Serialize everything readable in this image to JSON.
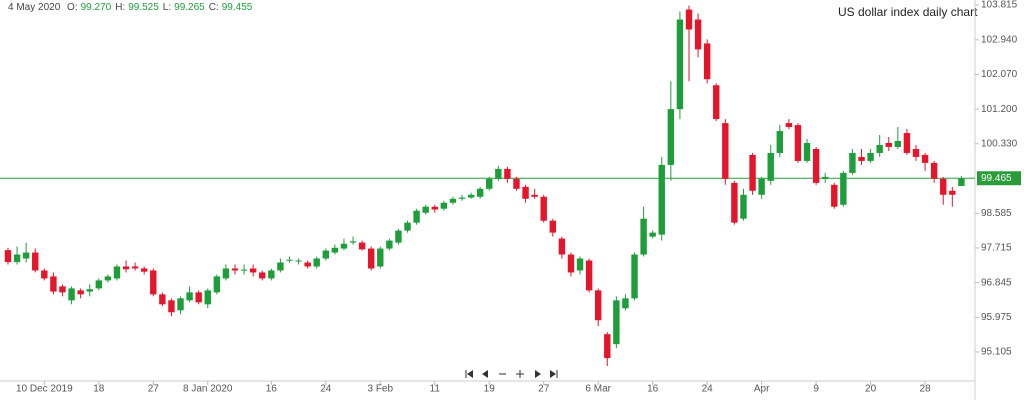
{
  "chart_data": {
    "type": "candlestick",
    "title": "US dollar index daily chart",
    "ohlc_header": {
      "date": "4 May 2020",
      "items": [
        {
          "label": "O:",
          "value": "99.270"
        },
        {
          "label": "H:",
          "value": "99.525"
        },
        {
          "label": "L:",
          "value": "99.265"
        },
        {
          "label": "C:",
          "value": "99.455"
        }
      ]
    },
    "categories": [
      null,
      null,
      null,
      null,
      "10 Dec 2019",
      null,
      null,
      null,
      null,
      null,
      "18",
      null,
      null,
      null,
      null,
      null,
      "27",
      null,
      null,
      null,
      null,
      null,
      "8 Jan 2020",
      null,
      null,
      null,
      null,
      null,
      null,
      "16",
      null,
      null,
      null,
      null,
      null,
      "24",
      null,
      null,
      null,
      null,
      null,
      "3 Feb",
      null,
      null,
      null,
      null,
      null,
      "11",
      null,
      null,
      null,
      null,
      null,
      "19",
      null,
      null,
      null,
      null,
      null,
      "27",
      null,
      null,
      null,
      null,
      null,
      "6 Mar",
      null,
      null,
      null,
      null,
      null,
      "16",
      null,
      null,
      null,
      null,
      null,
      "24",
      null,
      null,
      null,
      null,
      null,
      "Apr",
      null,
      null,
      null,
      null,
      null,
      "9",
      null,
      null,
      null,
      null,
      null,
      "20",
      null,
      null,
      null,
      null,
      null,
      "28",
      null,
      null,
      null,
      null
    ],
    "open": [
      97.66,
      97.36,
      97.45,
      97.6,
      97.15,
      97.0,
      96.75,
      96.4,
      96.65,
      96.62,
      96.7,
      96.9,
      96.95,
      97.25,
      97.25,
      97.2,
      97.15,
      96.55,
      96.4,
      96.15,
      96.4,
      96.6,
      96.3,
      96.6,
      96.95,
      97.2,
      97.15,
      97.2,
      97.1,
      96.95,
      97.15,
      97.4,
      97.38,
      97.35,
      97.25,
      97.45,
      97.6,
      97.7,
      97.85,
      97.85,
      97.7,
      97.25,
      97.7,
      97.85,
      98.15,
      98.35,
      98.6,
      98.75,
      98.7,
      98.85,
      98.95,
      98.98,
      99.0,
      99.2,
      99.45,
      99.7,
      99.45,
      99.25,
      99.05,
      99.0,
      98.4,
      97.95,
      97.55,
      97.15,
      97.4,
      96.65,
      95.55,
      95.3,
      96.2,
      96.45,
      97.55,
      98.0,
      98.05,
      99.8,
      101.2,
      103.7,
      103.45,
      102.85,
      101.8,
      100.85,
      99.35,
      98.45,
      100.05,
      99.05,
      99.4,
      100.1,
      100.85,
      100.8,
      99.9,
      100.2,
      99.45,
      99.3,
      98.8,
      99.6,
      100.0,
      99.9,
      100.1,
      100.35,
      100.25,
      100.6,
      100.2,
      100.05,
      99.85,
      99.45,
      99.15,
      99.27
    ],
    "high": [
      97.72,
      97.75,
      97.85,
      97.7,
      97.2,
      97.1,
      96.8,
      96.75,
      96.7,
      96.8,
      96.95,
      97.05,
      97.3,
      97.4,
      97.35,
      97.25,
      97.2,
      96.6,
      96.45,
      96.5,
      96.75,
      96.65,
      96.7,
      97.05,
      97.3,
      97.3,
      97.3,
      97.3,
      97.15,
      97.2,
      97.45,
      97.5,
      97.45,
      97.4,
      97.5,
      97.7,
      97.8,
      97.95,
      98.0,
      97.9,
      97.75,
      97.75,
      97.95,
      98.2,
      98.4,
      98.7,
      98.8,
      98.8,
      98.9,
      99.0,
      99.05,
      99.1,
      99.25,
      99.5,
      99.78,
      99.75,
      99.5,
      99.3,
      99.2,
      99.05,
      98.45,
      98.0,
      97.6,
      97.5,
      97.45,
      96.7,
      95.6,
      96.5,
      96.55,
      97.6,
      98.75,
      98.15,
      100.0,
      101.9,
      103.65,
      103.8,
      103.6,
      102.95,
      101.85,
      100.95,
      99.4,
      99.2,
      100.1,
      99.5,
      100.3,
      100.8,
      100.95,
      100.85,
      100.45,
      100.25,
      99.6,
      99.35,
      99.65,
      100.2,
      100.2,
      100.2,
      100.55,
      100.5,
      100.75,
      100.7,
      100.3,
      100.1,
      99.9,
      99.5,
      99.25,
      99.525
    ],
    "low": [
      97.3,
      97.3,
      97.35,
      97.1,
      96.9,
      96.55,
      96.5,
      96.3,
      96.45,
      96.5,
      96.65,
      96.85,
      96.9,
      97.1,
      97.15,
      97.05,
      96.5,
      96.25,
      96.0,
      96.05,
      96.35,
      96.3,
      96.2,
      96.55,
      96.9,
      97.05,
      97.05,
      97.0,
      96.9,
      96.9,
      97.1,
      97.35,
      97.3,
      97.2,
      97.2,
      97.4,
      97.55,
      97.65,
      97.8,
      97.65,
      97.15,
      97.2,
      97.65,
      97.8,
      98.1,
      98.3,
      98.55,
      98.6,
      98.65,
      98.8,
      98.9,
      98.95,
      98.95,
      99.15,
      99.4,
      99.35,
      99.15,
      98.85,
      98.95,
      98.35,
      98.0,
      97.45,
      97.0,
      97.05,
      96.6,
      95.75,
      94.75,
      95.2,
      96.15,
      96.4,
      97.5,
      97.95,
      97.9,
      99.4,
      100.95,
      101.9,
      102.5,
      101.85,
      100.9,
      99.3,
      98.3,
      98.4,
      99.05,
      98.95,
      99.3,
      100.0,
      100.7,
      99.85,
      99.85,
      99.3,
      99.35,
      98.7,
      98.75,
      99.55,
      99.8,
      99.85,
      100.0,
      100.15,
      100.2,
      100.05,
      99.9,
      99.65,
      99.35,
      98.8,
      98.75,
      99.265
    ],
    "close": [
      97.36,
      97.55,
      97.6,
      97.15,
      96.95,
      96.62,
      96.6,
      96.7,
      96.55,
      96.68,
      96.9,
      97.0,
      97.25,
      97.18,
      97.2,
      97.12,
      96.55,
      96.3,
      96.1,
      96.45,
      96.6,
      96.35,
      96.65,
      97.0,
      97.2,
      97.15,
      97.17,
      97.1,
      96.95,
      97.15,
      97.35,
      97.42,
      97.4,
      97.25,
      97.45,
      97.65,
      97.72,
      97.82,
      97.88,
      97.68,
      97.2,
      97.7,
      97.9,
      98.15,
      98.35,
      98.65,
      98.75,
      98.68,
      98.85,
      98.95,
      98.98,
      99.05,
      99.2,
      99.45,
      99.7,
      99.45,
      99.2,
      98.95,
      99.0,
      98.4,
      98.1,
      97.55,
      97.1,
      97.45,
      96.65,
      95.9,
      94.95,
      96.4,
      96.45,
      97.55,
      98.45,
      98.1,
      99.8,
      101.2,
      103.45,
      103.2,
      102.7,
      101.95,
      100.95,
      99.45,
      98.35,
      99.05,
      99.15,
      99.45,
      100.1,
      100.65,
      100.75,
      99.9,
      100.35,
      99.35,
      99.5,
      98.75,
      99.6,
      100.1,
      99.9,
      100.1,
      100.3,
      100.25,
      100.4,
      100.1,
      100.0,
      99.85,
      99.45,
      99.05,
      99.05,
      99.455
    ],
    "up_color": "#1e9e3a",
    "down_color": "#e5152b",
    "current_price": 99.465,
    "current_price_color": "#2a9d3a",
    "ylim": [
      94.4,
      103.94
    ],
    "yticks": [
      95.105,
      95.975,
      96.845,
      97.715,
      98.585,
      {
        "value": 100.33,
        "label": "100.330"
      },
      {
        "value": 101.2,
        "label": "101.200"
      },
      {
        "value": 102.07,
        "label": "102.070"
      },
      {
        "value": 102.94,
        "label": "102.940"
      },
      103.815
    ],
    "grid": false
  }
}
